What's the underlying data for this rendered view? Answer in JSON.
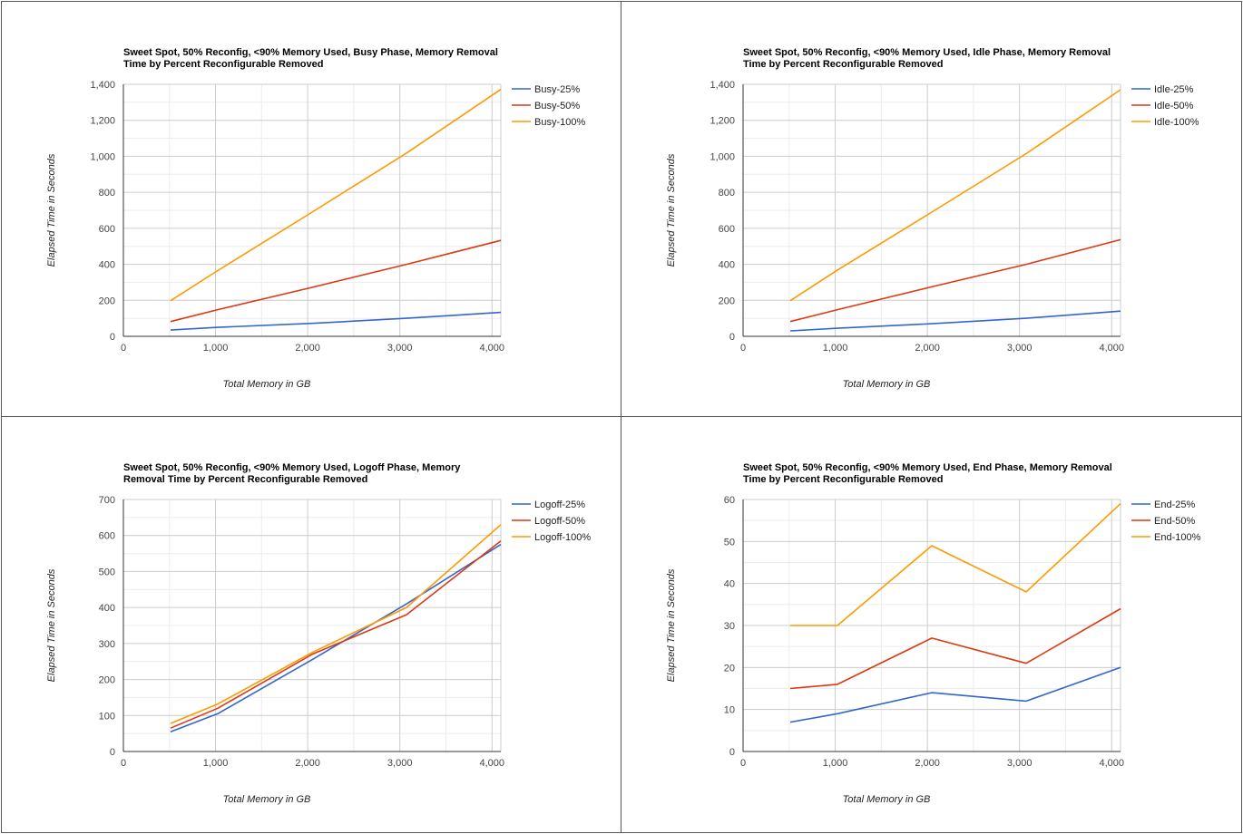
{
  "chart_data": [
    {
      "type": "line",
      "title": "Sweet Spot, 50% Reconfig, <90% Memory Used, Busy Phase, Memory Removal Time by Percent Reconfigurable Removed",
      "xlabel": "Total Memory in GB",
      "ylabel": "Elapsed Time in Seconds",
      "xlim": [
        0,
        4096
      ],
      "ylim": [
        0,
        1400
      ],
      "xticks": [
        0,
        1000,
        2000,
        3000,
        4000
      ],
      "xtick_labels": [
        "0",
        "1,000",
        "2,000",
        "3,000",
        "4,000"
      ],
      "yticks": [
        0,
        200,
        400,
        600,
        800,
        1000,
        1200,
        1400
      ],
      "ytick_labels": [
        "0",
        "200",
        "400",
        "600",
        "800",
        "1,000",
        "1,200",
        "1,400"
      ],
      "legend_position": "right",
      "x": [
        512,
        1024,
        2048,
        3072,
        4096
      ],
      "series": [
        {
          "name": "Busy-25%",
          "color": "#3366cc",
          "values": [
            35,
            50,
            72,
            100,
            133
          ]
        },
        {
          "name": "Busy-50%",
          "color": "#dc3912",
          "values": [
            82,
            148,
            272,
            400,
            533
          ]
        },
        {
          "name": "Busy-100%",
          "color": "#ff9900",
          "values": [
            198,
            365,
            690,
            1018,
            1372
          ]
        }
      ]
    },
    {
      "type": "line",
      "title": "Sweet Spot, 50% Reconfig, <90% Memory Used, Idle Phase, Memory Removal Time by Percent Reconfigurable Removed",
      "xlabel": "Total Memory in GB",
      "ylabel": "Elapsed Time in Seconds",
      "xlim": [
        0,
        4096
      ],
      "ylim": [
        0,
        1400
      ],
      "xticks": [
        0,
        1000,
        2000,
        3000,
        4000
      ],
      "xtick_labels": [
        "0",
        "1,000",
        "2,000",
        "3,000",
        "4,000"
      ],
      "yticks": [
        0,
        200,
        400,
        600,
        800,
        1000,
        1200,
        1400
      ],
      "ytick_labels": [
        "0",
        "200",
        "400",
        "600",
        "800",
        "1,000",
        "1,200",
        "1,400"
      ],
      "legend_position": "right",
      "x": [
        512,
        1024,
        2048,
        3072,
        4096
      ],
      "series": [
        {
          "name": "Idle-25%",
          "color": "#3366cc",
          "values": [
            30,
            45,
            70,
            100,
            140
          ]
        },
        {
          "name": "Idle-50%",
          "color": "#dc3912",
          "values": [
            82,
            148,
            275,
            400,
            537
          ]
        },
        {
          "name": "Idle-100%",
          "color": "#ff9900",
          "values": [
            198,
            368,
            690,
            1015,
            1370
          ]
        }
      ]
    },
    {
      "type": "line",
      "title": "Sweet Spot, 50% Reconfig, <90% Memory Used, Logoff Phase, Memory Removal Time by Percent Reconfigurable Removed",
      "xlabel": "Total Memory in GB",
      "ylabel": "Elapsed Time in Seconds",
      "xlim": [
        0,
        4096
      ],
      "ylim": [
        0,
        700
      ],
      "xticks": [
        0,
        1000,
        2000,
        3000,
        4000
      ],
      "xtick_labels": [
        "0",
        "1,000",
        "2,000",
        "3,000",
        "4,000"
      ],
      "yticks": [
        0,
        100,
        200,
        300,
        400,
        500,
        600,
        700
      ],
      "ytick_labels": [
        "0",
        "100",
        "200",
        "300",
        "400",
        "500",
        "600",
        "700"
      ],
      "legend_position": "right",
      "x": [
        512,
        1024,
        2048,
        3072,
        4096
      ],
      "series": [
        {
          "name": "Logoff-25%",
          "color": "#3366cc",
          "values": [
            55,
            105,
            255,
            410,
            575
          ]
        },
        {
          "name": "Logoff-50%",
          "color": "#dc3912",
          "values": [
            65,
            120,
            270,
            380,
            585
          ]
        },
        {
          "name": "Logoff-100%",
          "color": "#ff9900",
          "values": [
            78,
            132,
            275,
            400,
            630
          ]
        }
      ]
    },
    {
      "type": "line",
      "title": "Sweet Spot, 50% Reconfig, <90% Memory Used, End Phase, Memory Removal Time by Percent Reconfigurable Removed",
      "xlabel": "Total Memory in GB",
      "ylabel": "Elapsed Time in Seconds",
      "xlim": [
        0,
        4096
      ],
      "ylim": [
        0,
        60
      ],
      "xticks": [
        0,
        1000,
        2000,
        3000,
        4000
      ],
      "xtick_labels": [
        "0",
        "1,000",
        "2,000",
        "3,000",
        "4,000"
      ],
      "yticks": [
        0,
        10,
        20,
        30,
        40,
        50,
        60
      ],
      "ytick_labels": [
        "0",
        "10",
        "20",
        "30",
        "40",
        "50",
        "60"
      ],
      "legend_position": "right",
      "x": [
        512,
        1024,
        2048,
        3072,
        4096
      ],
      "series": [
        {
          "name": "End-25%",
          "color": "#3366cc",
          "values": [
            7,
            9,
            14,
            12,
            20
          ]
        },
        {
          "name": "End-50%",
          "color": "#dc3912",
          "values": [
            15,
            16,
            27,
            21,
            34
          ]
        },
        {
          "name": "End-100%",
          "color": "#ff9900",
          "values": [
            30,
            30,
            49,
            38,
            59
          ]
        }
      ]
    }
  ]
}
